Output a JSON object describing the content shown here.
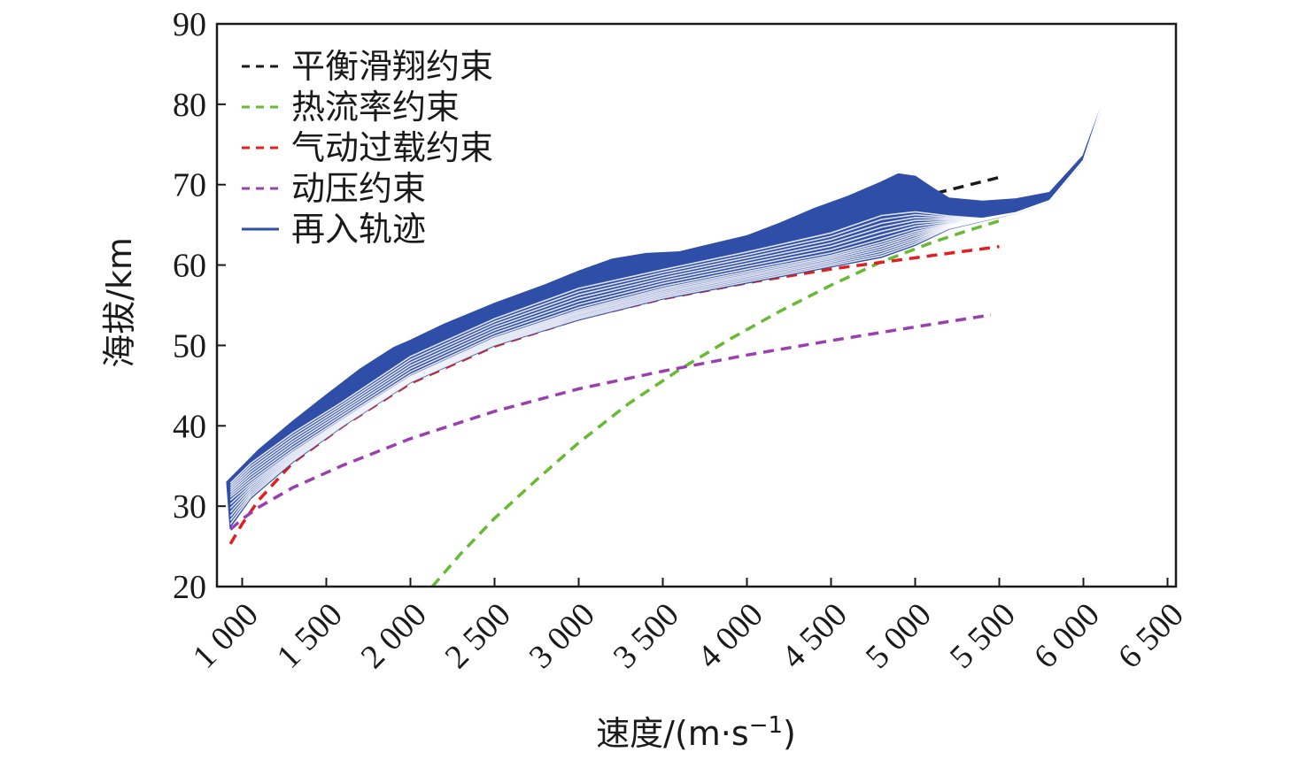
{
  "chart_data": {
    "type": "line",
    "xlabel": "速度/(m·s",
    "xlabel_sup": "−1",
    "xlabel_close": ")",
    "ylabel": "海拔/km",
    "xlim": [
      850,
      6550
    ],
    "ylim": [
      20,
      90
    ],
    "x_ticks": [
      {
        "value": 1000,
        "label": "1 000"
      },
      {
        "value": 1500,
        "label": "1 500"
      },
      {
        "value": 2000,
        "label": "2 000"
      },
      {
        "value": 2500,
        "label": "2 500"
      },
      {
        "value": 3000,
        "label": "3 000"
      },
      {
        "value": 3500,
        "label": "3 500"
      },
      {
        "value": 4000,
        "label": "4 000"
      },
      {
        "value": 4500,
        "label": "4 500"
      },
      {
        "value": 5000,
        "label": "5 000"
      },
      {
        "value": 5500,
        "label": "5 500"
      },
      {
        "value": 6000,
        "label": "6 000"
      },
      {
        "value": 6500,
        "label": "6 500"
      }
    ],
    "y_ticks": [
      {
        "value": 20,
        "label": "20"
      },
      {
        "value": 30,
        "label": "30"
      },
      {
        "value": 40,
        "label": "40"
      },
      {
        "value": 50,
        "label": "50"
      },
      {
        "value": 60,
        "label": "60"
      },
      {
        "value": 70,
        "label": "70"
      },
      {
        "value": 80,
        "label": "80"
      },
      {
        "value": 90,
        "label": "90"
      }
    ],
    "grid": false,
    "legend_position": "top-left",
    "series": [
      {
        "name": "平衡滑翔约束",
        "style": "dashed",
        "color": "#1a1a1a",
        "x": [
          930,
          1050,
          1200,
          1400,
          1600,
          1800,
          2000,
          2300,
          2600,
          3000,
          3500,
          4000,
          4500,
          5000,
          5500
        ],
        "y": [
          31.5,
          34.3,
          37.5,
          40.9,
          43.6,
          46.1,
          48.3,
          51.2,
          53.7,
          56.7,
          59.9,
          62.9,
          65.6,
          68.3,
          70.9
        ]
      },
      {
        "name": "热流率约束",
        "style": "dashed",
        "color": "#66bb33",
        "x": [
          2130,
          2300,
          2500,
          2750,
          3000,
          3300,
          3600,
          3900,
          4200,
          4500,
          4800,
          5100,
          5300,
          5500
        ],
        "y": [
          20,
          24.1,
          28.5,
          33.3,
          37.9,
          42.8,
          47.0,
          50.8,
          54.3,
          57.5,
          60.4,
          62.8,
          64.2,
          65.5
        ]
      },
      {
        "name": "气动过载约束",
        "style": "dashed",
        "color": "#e02020",
        "x": [
          930,
          1000,
          1100,
          1300,
          1600,
          2000,
          2500,
          3000,
          3500,
          4000,
          4500,
          5000,
          5500
        ],
        "y": [
          25.3,
          27.8,
          30.8,
          35.4,
          40.0,
          45.3,
          49.9,
          53.3,
          55.8,
          57.8,
          59.5,
          60.9,
          62.3
        ]
      },
      {
        "name": "动压约束",
        "style": "dashed",
        "color": "#9b3fb0",
        "x": [
          930,
          1000,
          1100,
          1300,
          1600,
          2000,
          2500,
          3000,
          3500,
          4000,
          4500,
          5000,
          5450
        ],
        "y": [
          27.1,
          28.4,
          29.9,
          32.3,
          35.1,
          38.4,
          41.8,
          44.6,
          46.8,
          48.8,
          50.6,
          52.3,
          53.8
        ]
      },
      {
        "name": "再入轨迹",
        "style": "solid",
        "color": "#2f4ea8",
        "band_upper": {
          "x": [
            910,
            1100,
            1300,
            1500,
            1700,
            1900,
            2000,
            2200,
            2500,
            2800,
            3000,
            3200,
            3400,
            3600,
            3800,
            4000,
            4200,
            4400,
            4600,
            4800,
            4900,
            5000,
            5100,
            5200,
            5400,
            5600,
            5800,
            6000,
            6100
          ],
          "y": [
            33,
            37,
            40.5,
            43.8,
            47,
            49.7,
            50.6,
            52.6,
            55.2,
            57.5,
            59.2,
            60.7,
            61.4,
            61.6,
            62.6,
            63.6,
            65.2,
            67.0,
            68.5,
            70.3,
            71.3,
            71.0,
            69.6,
            68.3,
            67.9,
            68.2,
            69.0,
            73.6,
            79.3
          ]
        },
        "curves": [
          {
            "x": [
              930,
              1050,
              1300,
              1600,
              2000,
              2500,
              3000,
              3500,
              4000,
              4500,
              4800,
              5000,
              5200,
              5400,
              5600,
              5800,
              6000,
              6100
            ],
            "y": [
              27.5,
              31.0,
              35.5,
              40.0,
              45.4,
              50.0,
              53.2,
              55.8,
              57.8,
              59.8,
              61.0,
              62.5,
              64.5,
              65.5,
              66.5,
              68.0,
              73.0,
              79.3
            ]
          },
          {
            "x": [
              930,
              1050,
              1300,
              1600,
              2000,
              2500,
              3000,
              3500,
              4000,
              4500,
              4800,
              5000,
              5200,
              5400,
              5600,
              5800,
              6000,
              6100
            ],
            "y": [
              31.0,
              33.0,
              36.8,
              40.9,
              46.2,
              51.0,
              54.5,
              57.2,
              59.3,
              61.3,
              63.0,
              64.3,
              65.1,
              65.7,
              66.5,
              68.0,
              73.0,
              79.3
            ]
          },
          {
            "x": [
              930,
              1050,
              1300,
              1600,
              2000,
              2500,
              3000,
              3500,
              4000,
              4500,
              4800,
              5000,
              5200,
              5400,
              5600,
              5800,
              6000,
              6100
            ],
            "y": [
              33.0,
              35.5,
              39.3,
              43.2,
              48.8,
              53.5,
              57.3,
              59.6,
              61.8,
              64.2,
              66.4,
              66.8,
              66.2,
              65.8,
              66.5,
              68.0,
              73.0,
              79.3
            ]
          },
          {
            "x": [
              910,
              1100,
              1300,
              1500,
              1700,
              1900,
              2000,
              2200,
              2500,
              2800,
              3000,
              3200,
              3400,
              3600,
              3800,
              4000,
              4200,
              4400,
              4600,
              4800,
              4900,
              5000,
              5100,
              5200,
              5400,
              5600,
              5800,
              6000,
              6100
            ],
            "y": [
              33,
              37,
              40.5,
              43.8,
              47,
              49.7,
              50.6,
              52.6,
              55.2,
              57.5,
              59.2,
              60.7,
              61.4,
              61.6,
              62.6,
              63.6,
              65.2,
              67.0,
              68.5,
              70.3,
              71.3,
              71.0,
              69.6,
              68.3,
              67.9,
              68.2,
              69.0,
              73.6,
              79.3
            ]
          }
        ]
      }
    ]
  }
}
